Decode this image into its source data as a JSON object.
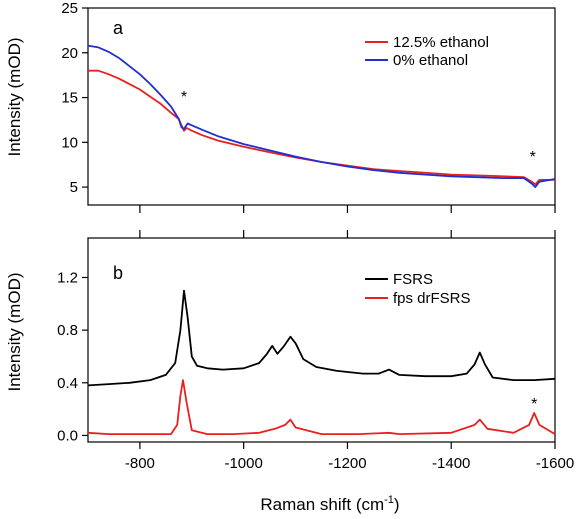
{
  "chart_data": [
    {
      "type": "line",
      "panel_label": "a",
      "ylabel": "Intensity (mOD)",
      "xlabel": "",
      "xlim": [
        -700,
        -1600
      ],
      "ylim": [
        3,
        25
      ],
      "yticks": [
        5,
        10,
        15,
        20,
        25
      ],
      "xticks": [
        -800,
        -1000,
        -1200,
        -1400,
        -1600
      ],
      "legend_position": "top-right",
      "annotations": [
        {
          "text": "*",
          "x": -885,
          "y": 15.5
        },
        {
          "text": "*",
          "x": -1557,
          "y": 8.8
        }
      ],
      "series": [
        {
          "name": "12.5% ethanol",
          "color": "#e8201e",
          "points": [
            [
              -700,
              18.0
            ],
            [
              -720,
              18.0
            ],
            [
              -740,
              17.6
            ],
            [
              -760,
              17.1
            ],
            [
              -780,
              16.5
            ],
            [
              -800,
              15.9
            ],
            [
              -820,
              15.1
            ],
            [
              -840,
              14.3
            ],
            [
              -860,
              13.3
            ],
            [
              -875,
              12.6
            ],
            [
              -880,
              11.9
            ],
            [
              -885,
              11.3
            ],
            [
              -890,
              11.6
            ],
            [
              -900,
              11.3
            ],
            [
              -920,
              10.8
            ],
            [
              -950,
              10.2
            ],
            [
              -1000,
              9.5
            ],
            [
              -1050,
              8.9
            ],
            [
              -1100,
              8.3
            ],
            [
              -1150,
              7.8
            ],
            [
              -1200,
              7.4
            ],
            [
              -1250,
              7.0
            ],
            [
              -1300,
              6.8
            ],
            [
              -1350,
              6.6
            ],
            [
              -1400,
              6.4
            ],
            [
              -1450,
              6.3
            ],
            [
              -1500,
              6.2
            ],
            [
              -1540,
              6.1
            ],
            [
              -1555,
              5.6
            ],
            [
              -1562,
              5.3
            ],
            [
              -1570,
              5.8
            ],
            [
              -1600,
              5.8
            ]
          ]
        },
        {
          "name": "0% ethanol",
          "color": "#1f2fd0",
          "points": [
            [
              -700,
              20.8
            ],
            [
              -720,
              20.6
            ],
            [
              -740,
              20.1
            ],
            [
              -760,
              19.4
            ],
            [
              -780,
              18.5
            ],
            [
              -800,
              17.6
            ],
            [
              -820,
              16.5
            ],
            [
              -840,
              15.3
            ],
            [
              -860,
              14.0
            ],
            [
              -875,
              12.6
            ],
            [
              -880,
              11.7
            ],
            [
              -885,
              11.5
            ],
            [
              -892,
              12.1
            ],
            [
              -900,
              11.9
            ],
            [
              -920,
              11.4
            ],
            [
              -950,
              10.7
            ],
            [
              -1000,
              9.8
            ],
            [
              -1050,
              9.1
            ],
            [
              -1100,
              8.4
            ],
            [
              -1150,
              7.8
            ],
            [
              -1200,
              7.3
            ],
            [
              -1250,
              6.9
            ],
            [
              -1300,
              6.6
            ],
            [
              -1350,
              6.4
            ],
            [
              -1400,
              6.2
            ],
            [
              -1450,
              6.1
            ],
            [
              -1500,
              6.0
            ],
            [
              -1540,
              6.0
            ],
            [
              -1555,
              5.4
            ],
            [
              -1562,
              5.0
            ],
            [
              -1570,
              5.6
            ],
            [
              -1600,
              5.9
            ]
          ]
        }
      ]
    },
    {
      "type": "line",
      "panel_label": "b",
      "ylabel": "Intensity (mOD)",
      "xlabel": "Raman shift (cm-1)",
      "xlim": [
        -700,
        -1600
      ],
      "ylim": [
        -0.05,
        1.5
      ],
      "yticks": [
        0.0,
        0.4,
        0.8,
        1.2
      ],
      "xticks": [
        -800,
        -1000,
        -1200,
        -1400,
        -1600
      ],
      "legend_position": "top-right",
      "annotations": [
        {
          "text": "*",
          "x": -1560,
          "y": 0.27
        }
      ],
      "series": [
        {
          "name": "FSRS",
          "color": "#000000",
          "points": [
            [
              -700,
              0.38
            ],
            [
              -740,
              0.39
            ],
            [
              -780,
              0.4
            ],
            [
              -820,
              0.42
            ],
            [
              -850,
              0.46
            ],
            [
              -868,
              0.55
            ],
            [
              -878,
              0.8
            ],
            [
              -885,
              1.1
            ],
            [
              -892,
              0.9
            ],
            [
              -900,
              0.6
            ],
            [
              -910,
              0.53
            ],
            [
              -930,
              0.51
            ],
            [
              -960,
              0.5
            ],
            [
              -1000,
              0.51
            ],
            [
              -1030,
              0.55
            ],
            [
              -1045,
              0.62
            ],
            [
              -1055,
              0.68
            ],
            [
              -1065,
              0.62
            ],
            [
              -1078,
              0.68
            ],
            [
              -1090,
              0.75
            ],
            [
              -1100,
              0.7
            ],
            [
              -1115,
              0.58
            ],
            [
              -1140,
              0.52
            ],
            [
              -1180,
              0.49
            ],
            [
              -1230,
              0.47
            ],
            [
              -1260,
              0.47
            ],
            [
              -1280,
              0.5
            ],
            [
              -1300,
              0.46
            ],
            [
              -1350,
              0.45
            ],
            [
              -1400,
              0.45
            ],
            [
              -1430,
              0.47
            ],
            [
              -1445,
              0.54
            ],
            [
              -1455,
              0.63
            ],
            [
              -1465,
              0.54
            ],
            [
              -1480,
              0.44
            ],
            [
              -1520,
              0.42
            ],
            [
              -1560,
              0.42
            ],
            [
              -1600,
              0.43
            ]
          ]
        },
        {
          "name": "fps drFSRS",
          "color": "#e8201e",
          "points": [
            [
              -700,
              0.02
            ],
            [
              -740,
              0.01
            ],
            [
              -780,
              0.01
            ],
            [
              -820,
              0.01
            ],
            [
              -860,
              0.01
            ],
            [
              -872,
              0.08
            ],
            [
              -878,
              0.3
            ],
            [
              -883,
              0.42
            ],
            [
              -890,
              0.25
            ],
            [
              -900,
              0.04
            ],
            [
              -930,
              0.01
            ],
            [
              -980,
              0.01
            ],
            [
              -1030,
              0.02
            ],
            [
              -1060,
              0.05
            ],
            [
              -1080,
              0.08
            ],
            [
              -1090,
              0.12
            ],
            [
              -1100,
              0.06
            ],
            [
              -1150,
              0.01
            ],
            [
              -1220,
              0.01
            ],
            [
              -1280,
              0.02
            ],
            [
              -1300,
              0.01
            ],
            [
              -1400,
              0.02
            ],
            [
              -1445,
              0.08
            ],
            [
              -1455,
              0.12
            ],
            [
              -1470,
              0.05
            ],
            [
              -1520,
              0.02
            ],
            [
              -1550,
              0.08
            ],
            [
              -1560,
              0.17
            ],
            [
              -1570,
              0.08
            ],
            [
              -1600,
              0.01
            ]
          ]
        }
      ]
    }
  ]
}
